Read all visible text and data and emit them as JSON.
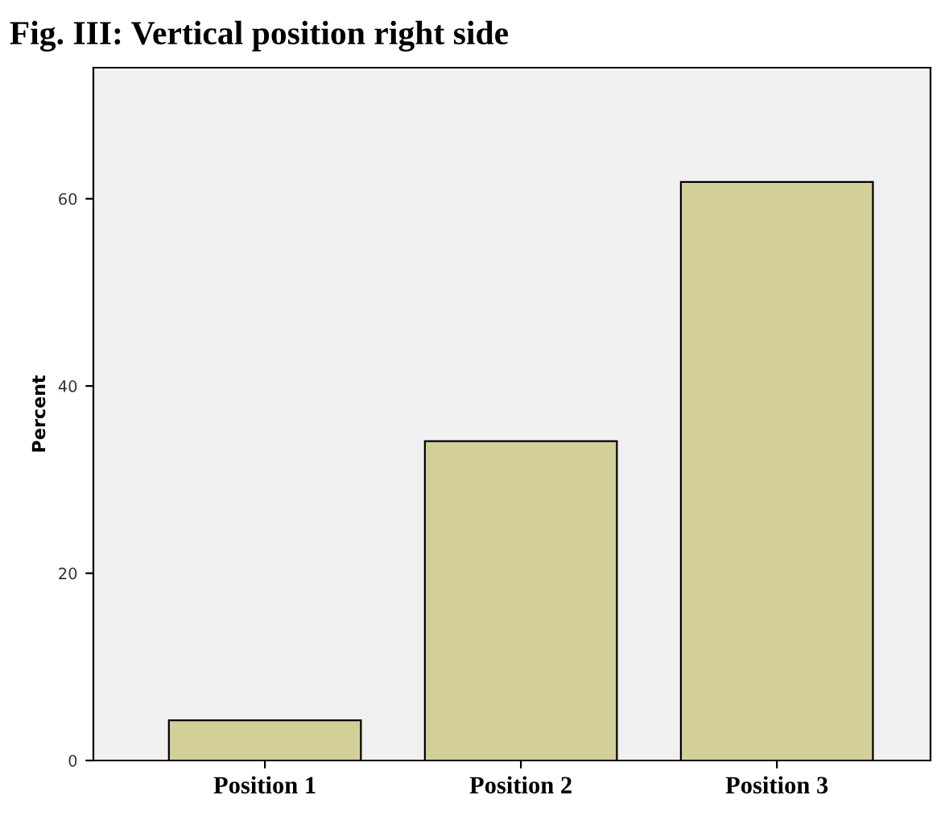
{
  "chart_data": {
    "type": "bar",
    "title": "Fig. III: Vertical position right side",
    "ylabel": "Percent",
    "categories": [
      "Position 1",
      "Position 2",
      "Position 3"
    ],
    "values": [
      4.3,
      34.1,
      61.8
    ],
    "color": "#d3cf98",
    "ylim": [
      0,
      74
    ],
    "yticks": [
      0,
      20,
      40,
      60
    ],
    "grid": false
  }
}
